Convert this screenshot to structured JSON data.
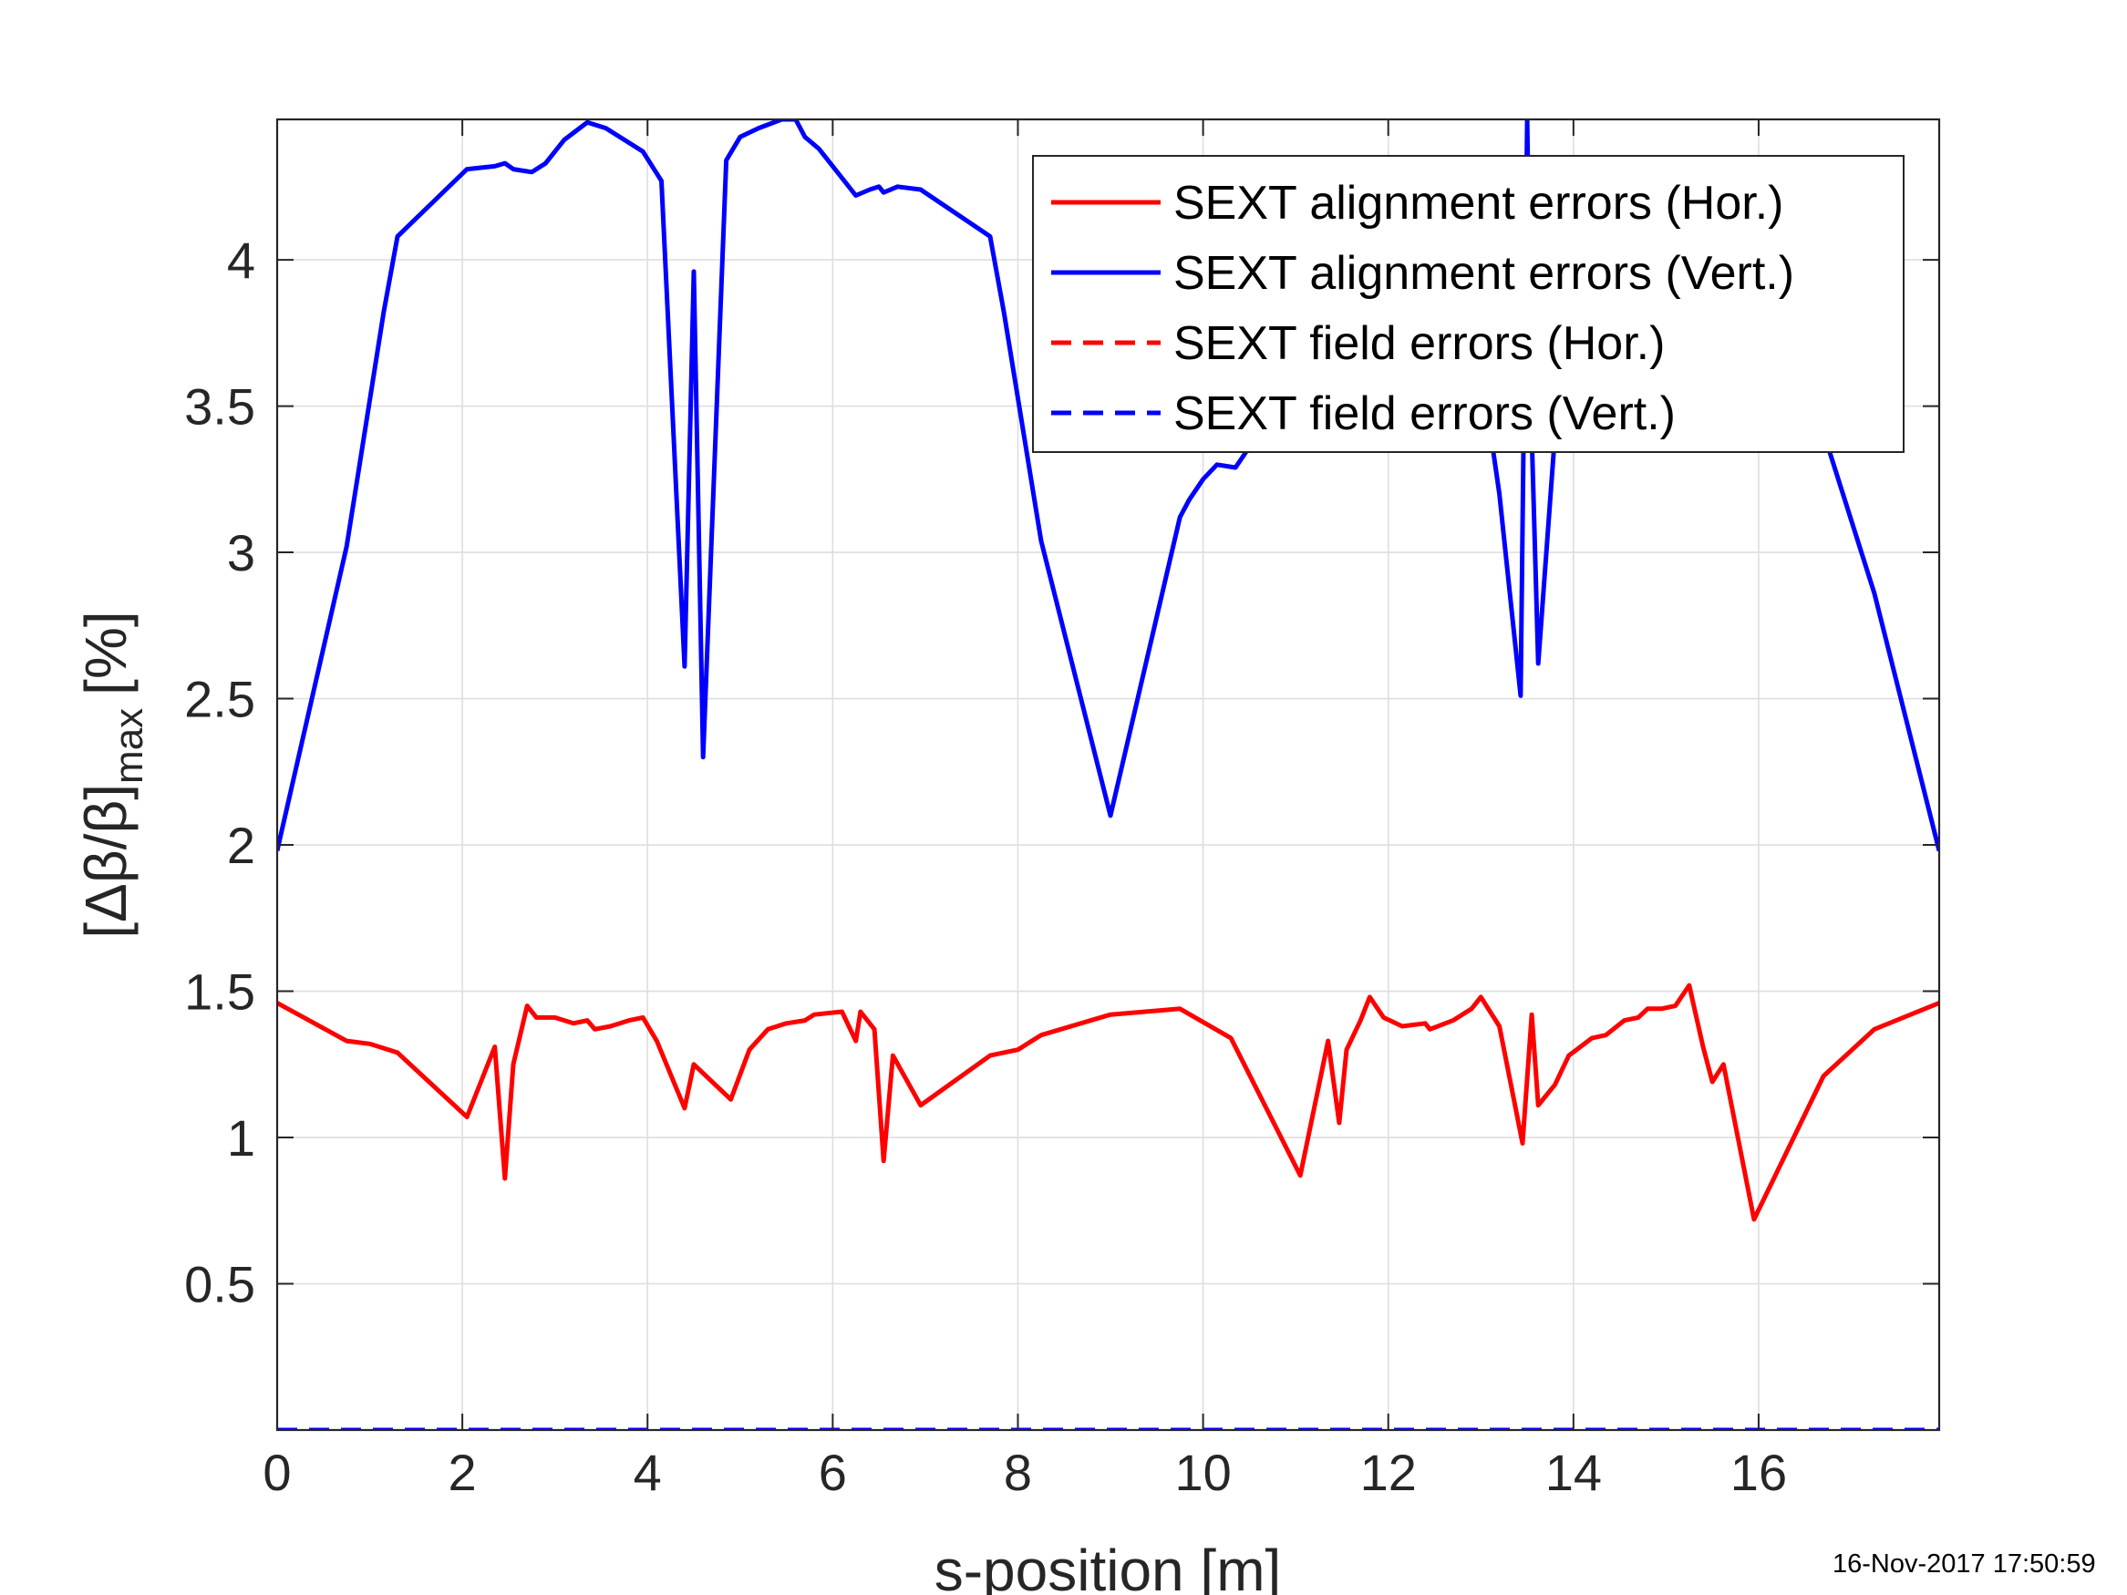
{
  "timestamp": "16-Nov-2017 17:50:59",
  "chart_data": {
    "type": "line",
    "xlabel": "s-position [m]",
    "ylabel": "[Δβ/β]max [%]",
    "ylabel_parts": {
      "main": "[Δβ/β]",
      "sub": "max",
      "unit": "[%]"
    },
    "xlim": [
      0,
      17.95
    ],
    "ylim": [
      0,
      4.48
    ],
    "xticks": [
      0,
      2,
      4,
      6,
      8,
      10,
      12,
      14,
      16
    ],
    "yticks": [
      0.5,
      1,
      1.5,
      2,
      2.5,
      3,
      3.5,
      4
    ],
    "xtick_labels": [
      "0",
      "2",
      "4",
      "6",
      "8",
      "10",
      "12",
      "14",
      "16"
    ],
    "ytick_labels": [
      "0.5",
      "1",
      "1.5",
      "2",
      "2.5",
      "3",
      "3.5",
      "4"
    ],
    "grid": true,
    "legend_position": "top-right",
    "series": [
      {
        "name": "SEXT alignment errors (Hor.)",
        "color": "#ff0000",
        "dash": "solid",
        "points": [
          [
            0,
            1.46
          ],
          [
            0.75,
            1.33
          ],
          [
            1.0,
            1.32
          ],
          [
            1.3,
            1.29
          ],
          [
            2.05,
            1.07
          ],
          [
            2.35,
            1.31
          ],
          [
            2.46,
            0.86
          ],
          [
            2.55,
            1.25
          ],
          [
            2.7,
            1.45
          ],
          [
            2.8,
            1.41
          ],
          [
            3.0,
            1.41
          ],
          [
            3.2,
            1.39
          ],
          [
            3.35,
            1.4
          ],
          [
            3.43,
            1.37
          ],
          [
            3.6,
            1.38
          ],
          [
            3.8,
            1.4
          ],
          [
            3.95,
            1.41
          ],
          [
            4.1,
            1.33
          ],
          [
            4.4,
            1.1
          ],
          [
            4.5,
            1.25
          ],
          [
            4.9,
            1.13
          ],
          [
            5.1,
            1.3
          ],
          [
            5.3,
            1.37
          ],
          [
            5.5,
            1.39
          ],
          [
            5.7,
            1.4
          ],
          [
            5.8,
            1.42
          ],
          [
            6.1,
            1.43
          ],
          [
            6.25,
            1.33
          ],
          [
            6.3,
            1.43
          ],
          [
            6.45,
            1.37
          ],
          [
            6.55,
            0.92
          ],
          [
            6.65,
            1.28
          ],
          [
            6.95,
            1.11
          ],
          [
            7.7,
            1.28
          ],
          [
            8.0,
            1.3
          ],
          [
            8.25,
            1.35
          ],
          [
            9.0,
            1.42
          ],
          [
            9.75,
            1.44
          ],
          [
            10.3,
            1.34
          ],
          [
            11.05,
            0.87
          ],
          [
            11.35,
            1.33
          ],
          [
            11.47,
            1.05
          ],
          [
            11.55,
            1.3
          ],
          [
            11.7,
            1.4
          ],
          [
            11.8,
            1.48
          ],
          [
            11.95,
            1.41
          ],
          [
            12.15,
            1.38
          ],
          [
            12.4,
            1.39
          ],
          [
            12.45,
            1.37
          ],
          [
            12.7,
            1.4
          ],
          [
            12.9,
            1.44
          ],
          [
            13.0,
            1.48
          ],
          [
            13.2,
            1.38
          ],
          [
            13.45,
            0.98
          ],
          [
            13.55,
            1.42
          ],
          [
            13.62,
            1.11
          ],
          [
            13.8,
            1.18
          ],
          [
            13.95,
            1.28
          ],
          [
            14.2,
            1.34
          ],
          [
            14.35,
            1.35
          ],
          [
            14.55,
            1.4
          ],
          [
            14.7,
            1.41
          ],
          [
            14.8,
            1.44
          ],
          [
            14.95,
            1.44
          ],
          [
            15.1,
            1.45
          ],
          [
            15.25,
            1.52
          ],
          [
            15.4,
            1.31
          ],
          [
            15.5,
            1.19
          ],
          [
            15.62,
            1.25
          ],
          [
            15.95,
            0.72
          ],
          [
            16.7,
            1.21
          ],
          [
            17.25,
            1.37
          ],
          [
            17.95,
            1.46
          ]
        ]
      },
      {
        "name": "SEXT alignment errors (Vert.)",
        "color": "#0000ff",
        "dash": "solid",
        "points": [
          [
            0,
            1.98
          ],
          [
            0.75,
            3.02
          ],
          [
            1.15,
            3.82
          ],
          [
            1.3,
            4.08
          ],
          [
            2.05,
            4.31
          ],
          [
            2.35,
            4.32
          ],
          [
            2.46,
            4.33
          ],
          [
            2.55,
            4.31
          ],
          [
            2.75,
            4.3
          ],
          [
            2.9,
            4.33
          ],
          [
            3.1,
            4.41
          ],
          [
            3.35,
            4.47
          ],
          [
            3.55,
            4.45
          ],
          [
            3.95,
            4.37
          ],
          [
            4.15,
            4.27
          ],
          [
            4.4,
            2.61
          ],
          [
            4.5,
            3.96
          ],
          [
            4.6,
            2.3
          ],
          [
            4.85,
            4.34
          ],
          [
            5.0,
            4.42
          ],
          [
            5.2,
            4.45
          ],
          [
            5.45,
            4.48
          ],
          [
            5.6,
            4.48
          ],
          [
            5.7,
            4.42
          ],
          [
            5.85,
            4.38
          ],
          [
            6.25,
            4.22
          ],
          [
            6.4,
            4.24
          ],
          [
            6.5,
            4.25
          ],
          [
            6.55,
            4.23
          ],
          [
            6.7,
            4.25
          ],
          [
            6.95,
            4.24
          ],
          [
            7.7,
            4.08
          ],
          [
            7.85,
            3.82
          ],
          [
            8.25,
            3.04
          ],
          [
            9.0,
            2.1
          ],
          [
            9.75,
            3.12
          ],
          [
            9.85,
            3.18
          ],
          [
            10.0,
            3.25
          ],
          [
            10.15,
            3.3
          ],
          [
            10.35,
            3.29
          ],
          [
            10.5,
            3.36
          ],
          [
            10.6,
            3.41
          ],
          [
            13.1,
            3.42
          ],
          [
            13.2,
            3.2
          ],
          [
            13.43,
            2.51
          ],
          [
            13.5,
            4.48
          ],
          [
            13.55,
            3.4
          ],
          [
            13.62,
            2.62
          ],
          [
            13.8,
            3.4
          ],
          [
            16.7,
            3.41
          ],
          [
            17.25,
            2.86
          ],
          [
            17.95,
            1.98
          ]
        ]
      },
      {
        "name": "SEXT field errors (Hor.)",
        "color": "#ff0000",
        "dash": "dashed",
        "points": [
          [
            0,
            0.0
          ],
          [
            17.95,
            0.0
          ]
        ]
      },
      {
        "name": "SEXT field errors (Vert.)",
        "color": "#0000ff",
        "dash": "dashed",
        "points": [
          [
            0,
            0.0
          ],
          [
            17.95,
            0.0
          ]
        ]
      }
    ]
  }
}
